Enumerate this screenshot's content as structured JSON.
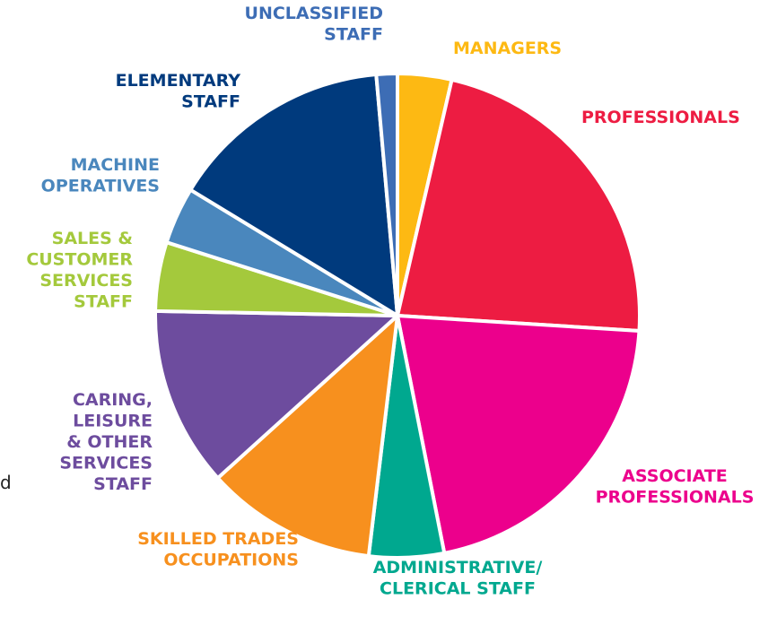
{
  "chart_data": {
    "type": "pie",
    "categories": [
      "MANAGERS",
      "PROFESSIONALS",
      "ASSOCIATE\nPROFESSIONALS",
      "ADMINISTRATIVE/\nCLERICAL STAFF",
      "SKILLED TRADES\nOCCUPATIONS",
      "CARING,\nLEISURE\n& OTHER\nSERVICES\nSTAFF",
      "SALES &\nCUSTOMER\nSERVICES\nSTAFF",
      "MACHINE\nOPERATIVES",
      "ELEMENTARY\nSTAFF",
      "UNCLASSIFIED\nSTAFF"
    ],
    "values": [
      3.6,
      22.4,
      20.9,
      5.0,
      11.4,
      12.0,
      4.6,
      3.8,
      14.9,
      1.4
    ],
    "colors": [
      "#fdb913",
      "#ed1c42",
      "#ec008c",
      "#00a88f",
      "#f7901e",
      "#6d4c9e",
      "#a4c93c",
      "#4a87bd",
      "#003a7d",
      "#3d6db5"
    ]
  },
  "fragment": "d"
}
